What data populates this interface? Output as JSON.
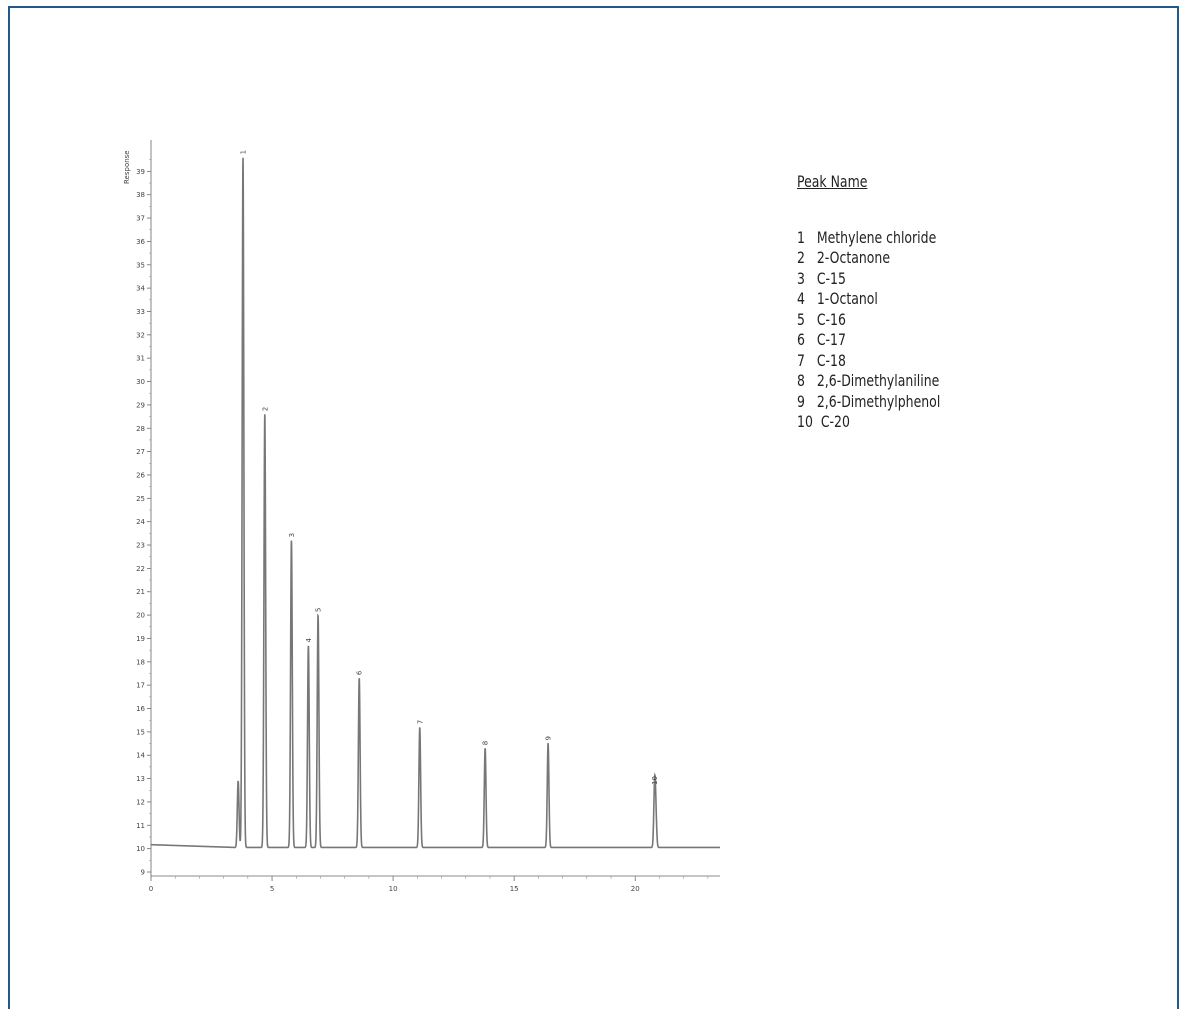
{
  "chart_data": {
    "type": "line",
    "ylabel": "Response",
    "xlabel": "",
    "xlim": [
      0,
      23.5
    ],
    "ylim": [
      9,
      40
    ],
    "x_ticks": [
      0,
      5,
      10,
      15,
      20
    ],
    "y_ticks": [
      9,
      10,
      11,
      12,
      13,
      14,
      15,
      16,
      17,
      18,
      19,
      20,
      21,
      22,
      23,
      24,
      25,
      26,
      27,
      28,
      29,
      30,
      31,
      32,
      33,
      34,
      35,
      36,
      37,
      38,
      39
    ],
    "baseline": 10.05,
    "peaks": [
      {
        "label": "1",
        "x": 3.8,
        "y": 39.6
      },
      {
        "label": "2",
        "x": 4.7,
        "y": 28.6
      },
      {
        "label": "3",
        "x": 5.8,
        "y": 23.2
      },
      {
        "label": "4",
        "x": 6.5,
        "y": 18.7
      },
      {
        "label": "5",
        "x": 6.9,
        "y": 20.0
      },
      {
        "label": "6",
        "x": 8.6,
        "y": 17.3
      },
      {
        "label": "7",
        "x": 11.1,
        "y": 15.2
      },
      {
        "label": "8",
        "x": 13.8,
        "y": 14.3
      },
      {
        "label": "9",
        "x": 16.4,
        "y": 14.5
      },
      {
        "label": "10",
        "x": 20.8,
        "y": 12.6
      }
    ],
    "minor_peaks": [
      {
        "x": 3.6,
        "y": 12.9
      },
      {
        "x": 20.85,
        "y": 11.3
      }
    ]
  },
  "legend": {
    "title": "Peak Name",
    "items": [
      "1   Methylene chloride",
      "2   2-Octanone",
      "3   C-15",
      "4   1-Octanol",
      "5   C-16",
      "6   C-17",
      "7   C-18",
      "8   2,6-Dimethylaniline",
      "9   2,6-Dimethylphenol",
      "10  C-20"
    ]
  }
}
